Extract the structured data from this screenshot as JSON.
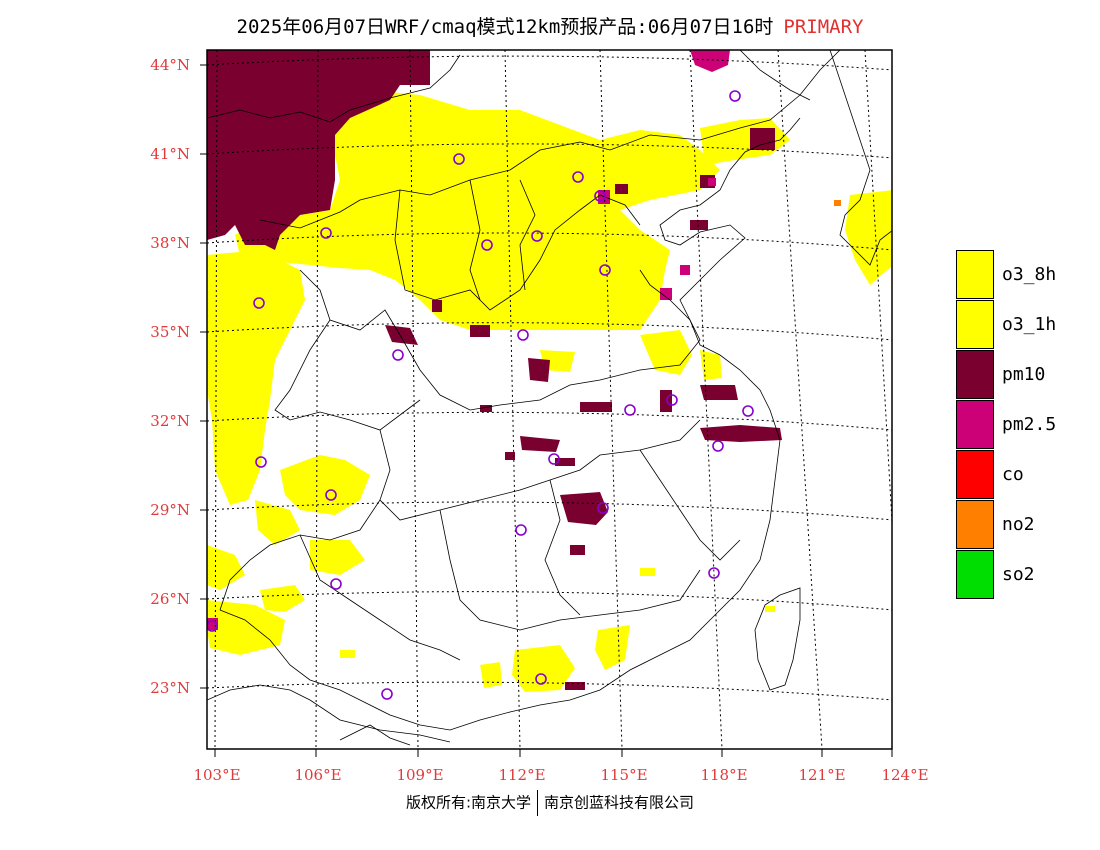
{
  "title": {
    "main": "2025年06月07日WRF/cmaq模式12km预报产品:06月07日16时",
    "mode": "PRIMARY"
  },
  "map": {
    "lat_labels": [
      "44°N",
      "41°N",
      "38°N",
      "35°N",
      "32°N",
      "29°N",
      "26°N",
      "23°N"
    ],
    "lon_labels": [
      "103°E",
      "106°E",
      "109°E",
      "112°E",
      "115°E",
      "118°E",
      "121°E",
      "124°E"
    ]
  },
  "legend": [
    {
      "label": "o3_8h",
      "color": "#ffff00"
    },
    {
      "label": "o3_1h",
      "color": "#ffff00"
    },
    {
      "label": "pm10",
      "color": "#7a0030"
    },
    {
      "label": "pm2.5",
      "color": "#cc0077"
    },
    {
      "label": "co",
      "color": "#ff0000"
    },
    {
      "label": "no2",
      "color": "#ff8000"
    },
    {
      "label": "so2",
      "color": "#00dd00"
    }
  ],
  "footer": {
    "left": "版权所有:南京大学",
    "right": "南京创蓝科技有限公司"
  }
}
